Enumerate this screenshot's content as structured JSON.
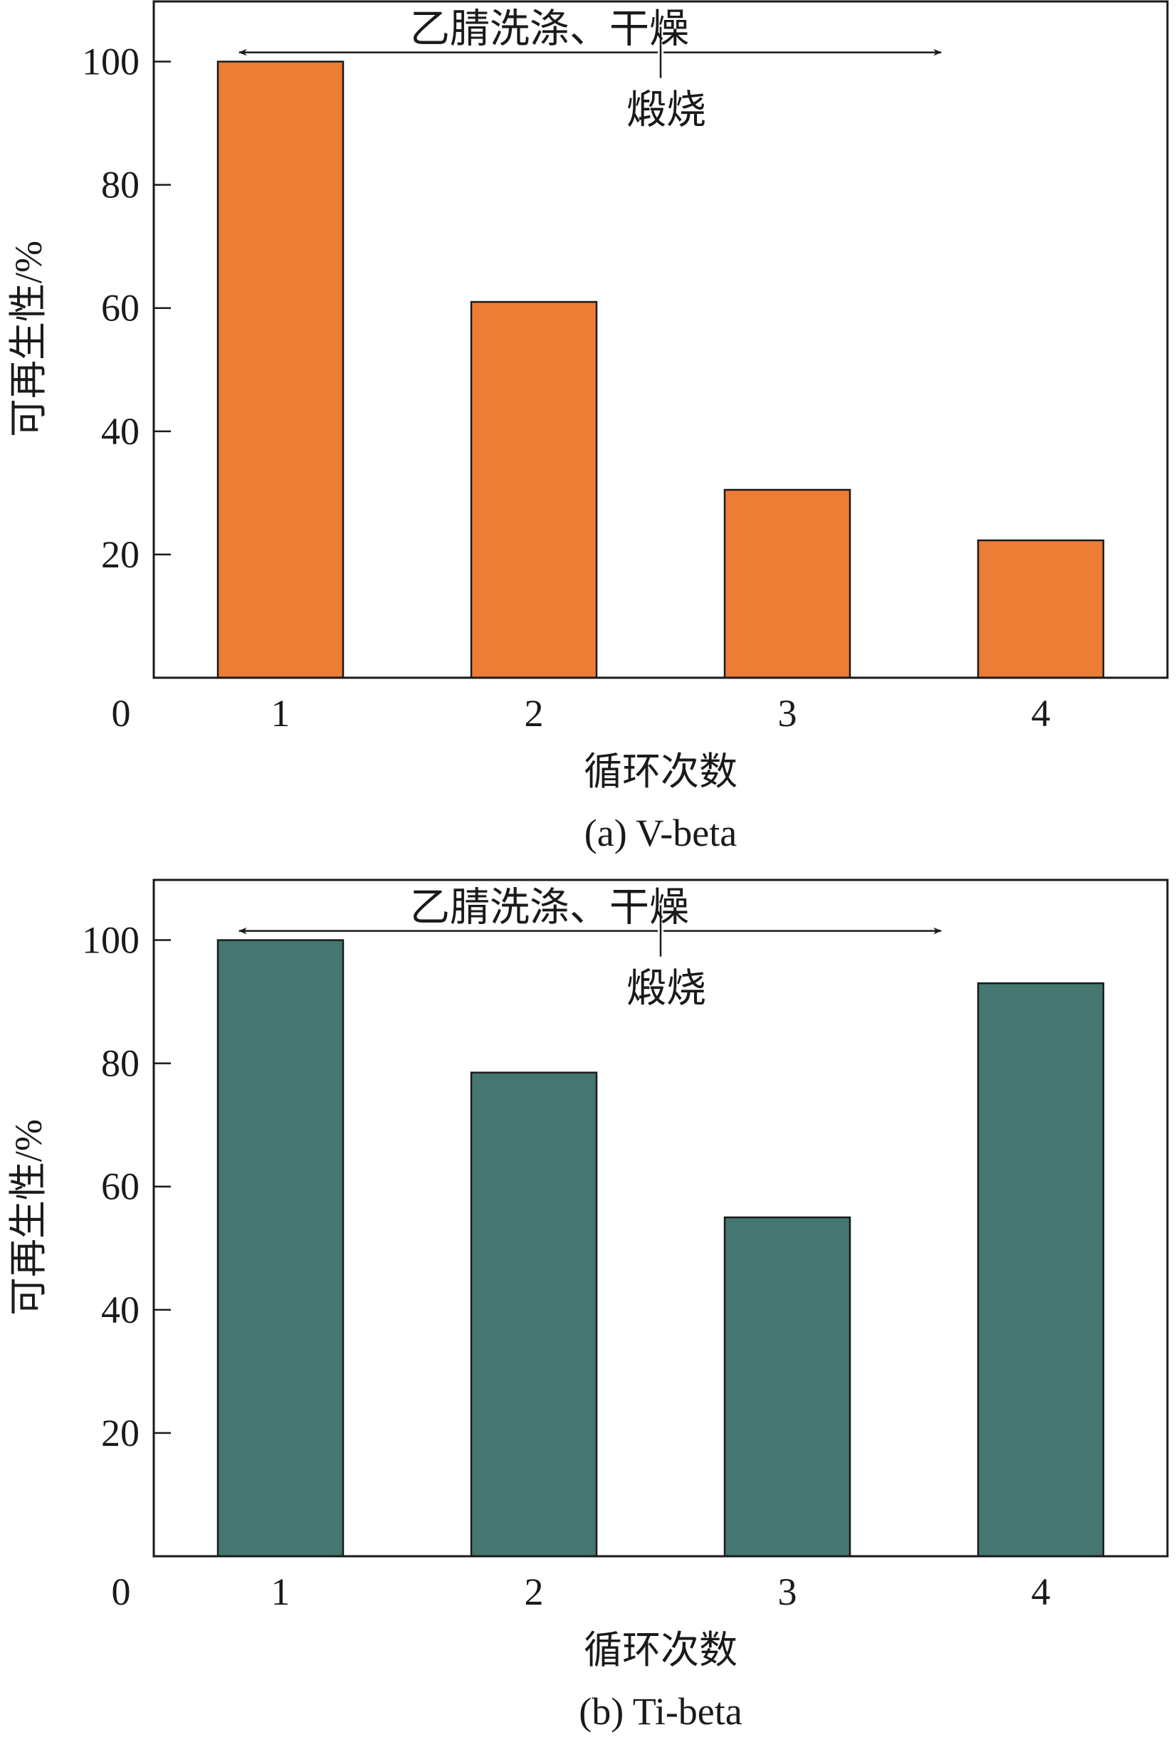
{
  "chart_data": [
    {
      "type": "bar",
      "caption": "(a) V-beta",
      "categories": [
        "1",
        "2",
        "3",
        "4"
      ],
      "values": [
        100,
        61,
        30.5,
        22.3
      ],
      "xlabel": "循环次数",
      "ylabel": "可再生性/%",
      "ylim": [
        0,
        110
      ],
      "yticks": [
        "20",
        "40",
        "60",
        "80",
        "100"
      ],
      "origin_label": "0",
      "bar_color": "#ed7d35",
      "grid": false,
      "annotations": {
        "wash": "乙腈洗涤、干燥",
        "calcine": "煅烧"
      }
    },
    {
      "type": "bar",
      "caption": "(b) Ti-beta",
      "categories": [
        "1",
        "2",
        "3",
        "4"
      ],
      "values": [
        100,
        78.5,
        55,
        93
      ],
      "xlabel": "循环次数",
      "ylabel": "可再生性/%",
      "ylim": [
        0,
        110
      ],
      "yticks": [
        "20",
        "40",
        "60",
        "80",
        "100"
      ],
      "origin_label": "0",
      "bar_color": "#457670",
      "grid": false,
      "annotations": {
        "wash": "乙腈洗涤、干燥",
        "calcine": "煅烧"
      }
    }
  ]
}
